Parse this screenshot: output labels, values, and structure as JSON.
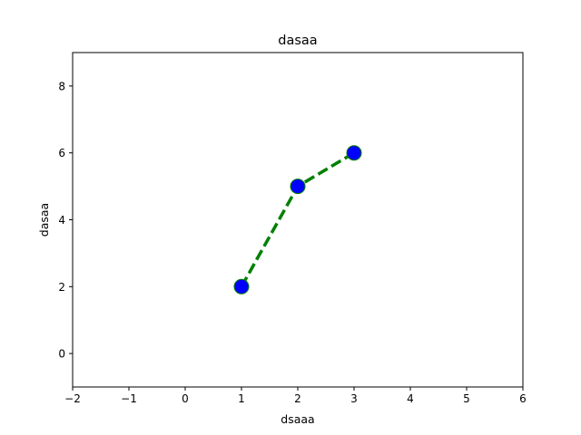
{
  "chart_data": {
    "type": "line",
    "title": "dasaa",
    "xlabel": "dsaaa",
    "ylabel": "dasaa",
    "xlim": [
      -2,
      6
    ],
    "ylim": [
      -1,
      9
    ],
    "x_ticks": [
      "−2",
      "−1",
      "0",
      "1",
      "2",
      "3",
      "4",
      "5",
      "6"
    ],
    "x_tick_values": [
      -2,
      -1,
      0,
      1,
      2,
      3,
      4,
      5,
      6
    ],
    "y_ticks": [
      "0",
      "2",
      "4",
      "6",
      "8"
    ],
    "y_tick_values": [
      0,
      2,
      4,
      6,
      8
    ],
    "grid": false,
    "series": [
      {
        "x": [
          1,
          2,
          3
        ],
        "y": [
          2,
          5,
          6
        ],
        "line_color": "#008000",
        "line_style": "dashed",
        "marker": "circle",
        "marker_face_color": "#0000ff",
        "marker_edge_color": "#008000"
      }
    ]
  }
}
